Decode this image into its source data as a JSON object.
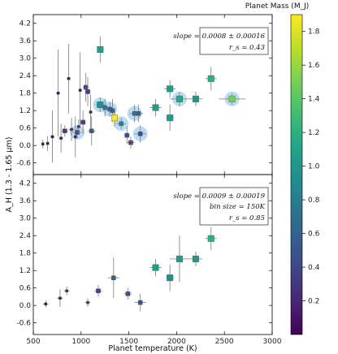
{
  "chart_data": [
    {
      "type": "scatter",
      "panel": "top",
      "annotation": [
        "slope = 0.0008 ± 0.00016",
        "r_s = 0.43"
      ],
      "xlim": [
        500,
        3000
      ],
      "ylim": [
        -1.0,
        4.5
      ],
      "y_ticks": [
        "-0.6",
        "0.0",
        "0.6",
        "1.2",
        "1.8",
        "2.4",
        "3.0",
        "3.6",
        "4.2"
      ],
      "grid": false,
      "points": [
        {
          "x": 600,
          "y": 0.05,
          "xerr": 15,
          "yerr": 0.15,
          "mass": 0.05,
          "size": "small",
          "halo": false
        },
        {
          "x": 650,
          "y": 0.07,
          "xerr": 15,
          "yerr": 0.25,
          "mass": 0.05,
          "size": "small",
          "halo": false
        },
        {
          "x": 700,
          "y": 0.3,
          "xerr": 20,
          "yerr": 0.9,
          "mass": 0.05,
          "size": "small",
          "halo": false
        },
        {
          "x": 760,
          "y": 1.8,
          "xerr": 20,
          "yerr": 1.5,
          "mass": 0.05,
          "size": "small",
          "halo": false
        },
        {
          "x": 790,
          "y": 0.25,
          "xerr": 25,
          "yerr": 0.5,
          "mass": 0.15,
          "size": "small",
          "halo": false
        },
        {
          "x": 830,
          "y": 0.5,
          "xerr": 35,
          "yerr": 0.2,
          "mass": 0.35,
          "size": "med",
          "halo": false
        },
        {
          "x": 870,
          "y": 2.3,
          "xerr": 20,
          "yerr": 1.2,
          "mass": 0.1,
          "size": "small",
          "halo": false
        },
        {
          "x": 900,
          "y": 0.55,
          "xerr": 30,
          "yerr": 0.4,
          "mass": 0.25,
          "size": "small",
          "halo": false
        },
        {
          "x": 940,
          "y": 0.3,
          "xerr": 20,
          "yerr": 0.7,
          "mass": 0.15,
          "size": "small",
          "halo": false
        },
        {
          "x": 960,
          "y": 0.45,
          "xerr": 45,
          "yerr": 0.2,
          "mass": 0.45,
          "size": "med",
          "halo": true
        },
        {
          "x": 975,
          "y": 0.65,
          "xerr": 20,
          "yerr": 0.25,
          "mass": 0.3,
          "size": "small",
          "halo": false
        },
        {
          "x": 990,
          "y": 1.9,
          "xerr": 20,
          "yerr": 1.3,
          "mass": 0.1,
          "size": "small",
          "halo": false
        },
        {
          "x": 1020,
          "y": 0.8,
          "xerr": 30,
          "yerr": 0.4,
          "mass": 0.35,
          "size": "med",
          "halo": false
        },
        {
          "x": 1050,
          "y": 2.0,
          "xerr": 30,
          "yerr": 0.5,
          "mass": 0.4,
          "size": "med",
          "halo": false
        },
        {
          "x": 1070,
          "y": 1.85,
          "xerr": 30,
          "yerr": 0.5,
          "mass": 0.35,
          "size": "med",
          "halo": false
        },
        {
          "x": 1100,
          "y": 1.15,
          "xerr": 20,
          "yerr": 0.6,
          "mass": 0.2,
          "size": "small",
          "halo": false
        },
        {
          "x": 1110,
          "y": 0.5,
          "xerr": 40,
          "yerr": 0.5,
          "mass": 0.55,
          "size": "med",
          "halo": false
        },
        {
          "x": 1200,
          "y": 3.3,
          "xerr": 30,
          "yerr": 0.45,
          "mass": 1.05,
          "size": "big",
          "halo": false
        },
        {
          "x": 1200,
          "y": 1.4,
          "xerr": 50,
          "yerr": 0.25,
          "mass": 0.95,
          "size": "big",
          "halo": true
        },
        {
          "x": 1250,
          "y": 1.3,
          "xerr": 40,
          "yerr": 0.3,
          "mass": 0.75,
          "size": "med",
          "halo": false
        },
        {
          "x": 1300,
          "y": 1.25,
          "xerr": 40,
          "yerr": 0.25,
          "mass": 0.6,
          "size": "med",
          "halo": true
        },
        {
          "x": 1330,
          "y": 1.2,
          "xerr": 30,
          "yerr": 0.4,
          "mass": 0.55,
          "size": "med",
          "halo": false
        },
        {
          "x": 1350,
          "y": 0.95,
          "xerr": 30,
          "yerr": 0.3,
          "mass": 1.9,
          "size": "big",
          "halo": false
        },
        {
          "x": 1420,
          "y": 0.75,
          "xerr": 50,
          "yerr": 0.2,
          "mass": 0.8,
          "size": "med",
          "halo": true
        },
        {
          "x": 1480,
          "y": 0.35,
          "xerr": 30,
          "yerr": 0.3,
          "mass": 0.45,
          "size": "med",
          "halo": false
        },
        {
          "x": 1520,
          "y": 0.1,
          "xerr": 40,
          "yerr": 0.2,
          "mass": 0.45,
          "size": "med",
          "halo": false
        },
        {
          "x": 1560,
          "y": 1.1,
          "xerr": 50,
          "yerr": 0.3,
          "mass": 0.6,
          "size": "med",
          "halo": true
        },
        {
          "x": 1600,
          "y": 1.1,
          "xerr": 50,
          "yerr": 0.3,
          "mass": 0.6,
          "size": "med",
          "halo": false
        },
        {
          "x": 1620,
          "y": 0.4,
          "xerr": 60,
          "yerr": 0.3,
          "mass": 0.45,
          "size": "med",
          "halo": true
        },
        {
          "x": 1780,
          "y": 1.3,
          "xerr": 60,
          "yerr": 0.3,
          "mass": 1.05,
          "size": "big",
          "halo": false
        },
        {
          "x": 1930,
          "y": 1.95,
          "xerr": 60,
          "yerr": 0.3,
          "mass": 1.05,
          "size": "big",
          "halo": false
        },
        {
          "x": 1930,
          "y": 0.95,
          "xerr": 40,
          "yerr": 0.45,
          "mass": 1.05,
          "size": "big",
          "halo": false
        },
        {
          "x": 2030,
          "y": 1.6,
          "xerr": 100,
          "yerr": 0.25,
          "mass": 1.15,
          "size": "big",
          "halo": true
        },
        {
          "x": 2200,
          "y": 1.6,
          "xerr": 70,
          "yerr": 0.25,
          "mass": 1.0,
          "size": "big",
          "halo": false
        },
        {
          "x": 2360,
          "y": 2.3,
          "xerr": 60,
          "yerr": 0.4,
          "mass": 1.2,
          "size": "big",
          "halo": false
        },
        {
          "x": 2580,
          "y": 1.6,
          "xerr": 140,
          "yerr": 0.2,
          "mass": 1.5,
          "size": "big",
          "halo": true
        }
      ]
    },
    {
      "type": "scatter",
      "panel": "bottom",
      "annotation": [
        "slope = 0.0009 ± 0.00019",
        "bin size = 150K",
        "r_s = 0.85"
      ],
      "xlabel": "Planet temperature (K)",
      "xlim": [
        500,
        3000
      ],
      "ylim": [
        -1.0,
        4.5
      ],
      "x_ticks": [
        "500",
        "1000",
        "1500",
        "2000",
        "2500",
        "3000"
      ],
      "y_ticks": [
        "-0.6",
        "0.0",
        "0.6",
        "1.2",
        "1.8",
        "2.4",
        "3.0",
        "3.6",
        "4.2"
      ],
      "grid": false,
      "points": [
        {
          "x": 630,
          "y": 0.05,
          "xerr": 30,
          "yerr": 0.12,
          "mass": 0.05,
          "size": "small"
        },
        {
          "x": 780,
          "y": 0.25,
          "xerr": 30,
          "yerr": 0.3,
          "mass": 0.1,
          "size": "small"
        },
        {
          "x": 850,
          "y": 0.5,
          "xerr": 30,
          "yerr": 0.15,
          "mass": 0.15,
          "size": "small"
        },
        {
          "x": 1070,
          "y": 0.1,
          "xerr": 30,
          "yerr": 0.15,
          "mass": 0.25,
          "size": "small"
        },
        {
          "x": 1180,
          "y": 0.5,
          "xerr": 40,
          "yerr": 0.2,
          "mass": 0.4,
          "size": "med"
        },
        {
          "x": 1340,
          "y": 0.95,
          "xerr": 60,
          "yerr": 0.7,
          "mass": 0.55,
          "size": "med"
        },
        {
          "x": 1490,
          "y": 0.4,
          "xerr": 40,
          "yerr": 0.2,
          "mass": 0.5,
          "size": "med"
        },
        {
          "x": 1620,
          "y": 0.1,
          "xerr": 60,
          "yerr": 0.3,
          "mass": 0.5,
          "size": "med"
        },
        {
          "x": 1780,
          "y": 1.3,
          "xerr": 60,
          "yerr": 0.3,
          "mass": 1.05,
          "size": "big"
        },
        {
          "x": 1930,
          "y": 0.95,
          "xerr": 40,
          "yerr": 0.45,
          "mass": 0.95,
          "size": "big"
        },
        {
          "x": 2030,
          "y": 1.6,
          "xerr": 100,
          "yerr": 0.8,
          "mass": 1.05,
          "size": "big"
        },
        {
          "x": 2200,
          "y": 1.6,
          "xerr": 70,
          "yerr": 0.25,
          "mass": 1.0,
          "size": "big"
        },
        {
          "x": 2360,
          "y": 2.3,
          "xerr": 60,
          "yerr": 0.4,
          "mass": 1.2,
          "size": "big"
        }
      ]
    }
  ],
  "shared_ylabel": "A_H (1.3 - 1.65 μm)",
  "colorbar": {
    "title": "Planet Mass (M_J)",
    "range": [
      0.0,
      1.9
    ],
    "ticks": [
      "0.2",
      "0.4",
      "0.6",
      "0.8",
      "1.0",
      "1.2",
      "1.4",
      "1.6",
      "1.8"
    ],
    "colormap": "viridis"
  },
  "colors": {
    "halo": "#a8cff0",
    "errorbar": "#7a7a7a",
    "viridis": [
      "#440154",
      "#482475",
      "#414487",
      "#355f8d",
      "#2a788e",
      "#21918c",
      "#22a884",
      "#44bf70",
      "#7ad151",
      "#bddf26",
      "#fde725"
    ]
  }
}
